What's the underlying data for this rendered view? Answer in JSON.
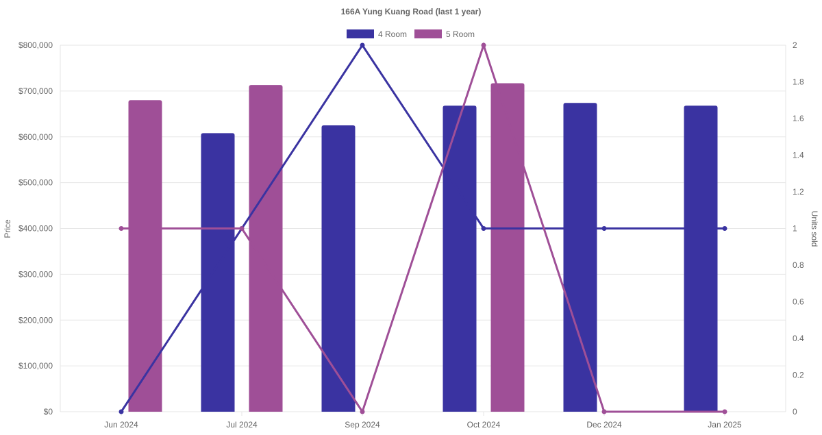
{
  "chart_data": {
    "type": "bar",
    "title": "166A Yung Kuang Road (last 1 year)",
    "categories": [
      "Jun 2024",
      "Jul 2024",
      "Sep 2024",
      "Oct 2024",
      "Dec 2024",
      "Jan 2025"
    ],
    "y_left": {
      "label": "Price",
      "range": [
        0,
        800000
      ],
      "ticks": [
        "$0",
        "$100,000",
        "$200,000",
        "$300,000",
        "$400,000",
        "$500,000",
        "$600,000",
        "$700,000",
        "$800,000"
      ]
    },
    "y_right": {
      "label": "Units sold",
      "range": [
        0,
        2
      ],
      "ticks": [
        "0",
        "0.2",
        "0.4",
        "0.6",
        "0.8",
        "1",
        "1.2",
        "1.4",
        "1.6",
        "1.8",
        "2"
      ]
    },
    "grid": true,
    "legend": {
      "position": "top"
    },
    "series": [
      {
        "name": "4 Room",
        "color": "#3a33a1",
        "price": [
          null,
          608000,
          625000,
          668000,
          674000,
          668000
        ],
        "units_sold": [
          0,
          1,
          2,
          1,
          1,
          1
        ]
      },
      {
        "name": "5 Room",
        "color": "#9f4f97",
        "price": [
          680000,
          713000,
          null,
          717000,
          null,
          null
        ],
        "units_sold": [
          1,
          1,
          0,
          2,
          0,
          0
        ]
      }
    ]
  }
}
